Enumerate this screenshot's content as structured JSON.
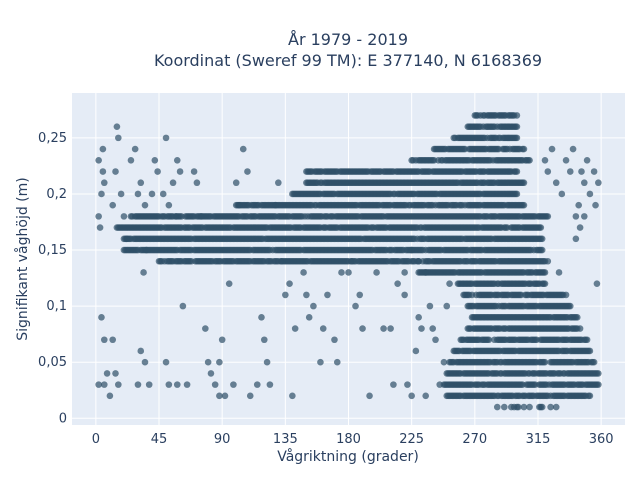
{
  "chart_data": {
    "type": "scatter",
    "title": [
      "År 1979 - 2019",
      "Koordinat (Sweref 99 TM): E 377140, N 6168369"
    ],
    "xlabel": "Vågriktning (grader)",
    "ylabel": "Signifikant våghöjd (m)",
    "xlim": [
      -17,
      377
    ],
    "ylim": [
      -0.006,
      0.29
    ],
    "x_ticks": [
      0,
      45,
      90,
      135,
      180,
      225,
      270,
      315,
      360
    ],
    "x_tick_labels": [
      "0",
      "45",
      "90",
      "135",
      "180",
      "225",
      "270",
      "315",
      "360"
    ],
    "y_ticks": [
      0,
      0.05,
      0.1,
      0.15,
      0.2,
      0.25
    ],
    "y_tick_labels": [
      "0",
      "0,05",
      "0,1",
      "0,15",
      "0,2",
      "0,25"
    ],
    "grid": true,
    "colors": {
      "plot_bg": "#e5ecf6",
      "grid": "#ffffff",
      "marker": "#2f5068",
      "text": "#2a3f5f"
    },
    "marker_opacity": 0.7,
    "bands": [
      {
        "y": 0.01,
        "x_from": 285,
        "x_to": 330,
        "density": 0.35
      },
      {
        "y": 0.02,
        "x_from": 250,
        "x_to": 352,
        "density": 0.85
      },
      {
        "y": 0.03,
        "x_from": 248,
        "x_to": 358,
        "density": 0.9
      },
      {
        "y": 0.04,
        "x_from": 250,
        "x_to": 358,
        "density": 0.9
      },
      {
        "y": 0.05,
        "x_from": 252,
        "x_to": 355,
        "density": 0.9
      },
      {
        "y": 0.06,
        "x_from": 255,
        "x_to": 352,
        "density": 0.9
      },
      {
        "y": 0.07,
        "x_from": 260,
        "x_to": 350,
        "density": 0.9
      },
      {
        "y": 0.08,
        "x_from": 265,
        "x_to": 345,
        "density": 0.9
      },
      {
        "y": 0.09,
        "x_from": 268,
        "x_to": 343,
        "density": 0.9
      },
      {
        "y": 0.1,
        "x_from": 265,
        "x_to": 338,
        "density": 0.9
      },
      {
        "y": 0.11,
        "x_from": 262,
        "x_to": 335,
        "density": 0.9
      },
      {
        "y": 0.12,
        "x_from": 258,
        "x_to": 320,
        "density": 0.9
      },
      {
        "y": 0.13,
        "x_from": 230,
        "x_to": 320,
        "density": 0.95
      },
      {
        "y": 0.14,
        "x_from": 45,
        "x_to": 322,
        "density": 0.9
      },
      {
        "y": 0.15,
        "x_from": 20,
        "x_to": 318,
        "density": 0.95
      },
      {
        "y": 0.16,
        "x_from": 20,
        "x_to": 318,
        "density": 0.95
      },
      {
        "y": 0.17,
        "x_from": 15,
        "x_to": 318,
        "density": 0.95
      },
      {
        "y": 0.18,
        "x_from": 25,
        "x_to": 322,
        "density": 0.95
      },
      {
        "y": 0.19,
        "x_from": 100,
        "x_to": 305,
        "density": 0.95
      },
      {
        "y": 0.2,
        "x_from": 140,
        "x_to": 300,
        "density": 0.95
      },
      {
        "y": 0.21,
        "x_from": 150,
        "x_to": 305,
        "density": 0.95
      },
      {
        "y": 0.22,
        "x_from": 150,
        "x_to": 300,
        "density": 0.9
      },
      {
        "y": 0.23,
        "x_from": 225,
        "x_to": 310,
        "density": 0.9
      },
      {
        "y": 0.24,
        "x_from": 240,
        "x_to": 305,
        "density": 0.9
      },
      {
        "y": 0.25,
        "x_from": 255,
        "x_to": 300,
        "density": 0.9
      },
      {
        "y": 0.26,
        "x_from": 265,
        "x_to": 300,
        "density": 0.9
      },
      {
        "y": 0.27,
        "x_from": 270,
        "x_to": 300,
        "density": 0.9
      }
    ],
    "scatter_points": [
      [
        2,
        0.18
      ],
      [
        3,
        0.17
      ],
      [
        4,
        0.2
      ],
      [
        5,
        0.22
      ],
      [
        6,
        0.21
      ],
      [
        2,
        0.23
      ],
      [
        5,
        0.24
      ],
      [
        4,
        0.09
      ],
      [
        6,
        0.07
      ],
      [
        8,
        0.04
      ],
      [
        10,
        0.02
      ],
      [
        2,
        0.03
      ],
      [
        6,
        0.03
      ],
      [
        12,
        0.19
      ],
      [
        14,
        0.22
      ],
      [
        15,
        0.26
      ],
      [
        16,
        0.25
      ],
      [
        18,
        0.2
      ],
      [
        20,
        0.18
      ],
      [
        22,
        0.16
      ],
      [
        12,
        0.07
      ],
      [
        14,
        0.04
      ],
      [
        16,
        0.03
      ],
      [
        25,
        0.23
      ],
      [
        28,
        0.24
      ],
      [
        30,
        0.2
      ],
      [
        32,
        0.21
      ],
      [
        35,
        0.19
      ],
      [
        36,
        0.15
      ],
      [
        34,
        0.13
      ],
      [
        30,
        0.03
      ],
      [
        32,
        0.06
      ],
      [
        35,
        0.05
      ],
      [
        38,
        0.03
      ],
      [
        40,
        0.2
      ],
      [
        42,
        0.23
      ],
      [
        44,
        0.22
      ],
      [
        48,
        0.2
      ],
      [
        50,
        0.25
      ],
      [
        52,
        0.19
      ],
      [
        55,
        0.21
      ],
      [
        57,
        0.18
      ],
      [
        58,
        0.23
      ],
      [
        60,
        0.22
      ],
      [
        50,
        0.05
      ],
      [
        52,
        0.03
      ],
      [
        58,
        0.03
      ],
      [
        62,
        0.1
      ],
      [
        65,
        0.03
      ],
      [
        70,
        0.22
      ],
      [
        72,
        0.21
      ],
      [
        75,
        0.18
      ],
      [
        78,
        0.08
      ],
      [
        80,
        0.05
      ],
      [
        82,
        0.04
      ],
      [
        85,
        0.03
      ],
      [
        88,
        0.05
      ],
      [
        90,
        0.07
      ],
      [
        88,
        0.02
      ],
      [
        92,
        0.02
      ],
      [
        95,
        0.12
      ],
      [
        98,
        0.03
      ],
      [
        100,
        0.21
      ],
      [
        102,
        0.19
      ],
      [
        105,
        0.24
      ],
      [
        108,
        0.22
      ],
      [
        110,
        0.02
      ],
      [
        115,
        0.03
      ],
      [
        118,
        0.09
      ],
      [
        120,
        0.07
      ],
      [
        122,
        0.05
      ],
      [
        124,
        0.03
      ],
      [
        128,
        0.19
      ],
      [
        130,
        0.21
      ],
      [
        132,
        0.14
      ],
      [
        135,
        0.11
      ],
      [
        138,
        0.12
      ],
      [
        140,
        0.02
      ],
      [
        142,
        0.08
      ],
      [
        145,
        0.14
      ],
      [
        148,
        0.13
      ],
      [
        150,
        0.11
      ],
      [
        152,
        0.09
      ],
      [
        155,
        0.1
      ],
      [
        160,
        0.05
      ],
      [
        162,
        0.08
      ],
      [
        165,
        0.11
      ],
      [
        170,
        0.07
      ],
      [
        172,
        0.05
      ],
      [
        175,
        0.13
      ],
      [
        180,
        0.13
      ],
      [
        182,
        0.14
      ],
      [
        185,
        0.1
      ],
      [
        188,
        0.11
      ],
      [
        190,
        0.08
      ],
      [
        195,
        0.02
      ],
      [
        200,
        0.13
      ],
      [
        205,
        0.08
      ],
      [
        210,
        0.08
      ],
      [
        212,
        0.03
      ],
      [
        215,
        0.12
      ],
      [
        220,
        0.11
      ],
      [
        222,
        0.03
      ],
      [
        225,
        0.02
      ],
      [
        228,
        0.06
      ],
      [
        230,
        0.09
      ],
      [
        232,
        0.08
      ],
      [
        235,
        0.02
      ],
      [
        238,
        0.1
      ],
      [
        240,
        0.08
      ],
      [
        242,
        0.07
      ],
      [
        245,
        0.03
      ],
      [
        248,
        0.05
      ],
      [
        250,
        0.1
      ],
      [
        252,
        0.12
      ],
      [
        220,
        0.13
      ],
      [
        225,
        0.15
      ],
      [
        230,
        0.14
      ],
      [
        235,
        0.13
      ],
      [
        320,
        0.23
      ],
      [
        322,
        0.22
      ],
      [
        325,
        0.24
      ],
      [
        328,
        0.21
      ],
      [
        330,
        0.13
      ],
      [
        332,
        0.2
      ],
      [
        335,
        0.23
      ],
      [
        338,
        0.22
      ],
      [
        340,
        0.24
      ],
      [
        342,
        0.18
      ],
      [
        345,
        0.17
      ],
      [
        348,
        0.21
      ],
      [
        350,
        0.23
      ],
      [
        352,
        0.2
      ],
      [
        355,
        0.22
      ],
      [
        356,
        0.19
      ],
      [
        358,
        0.21
      ],
      [
        357,
        0.12
      ],
      [
        342,
        0.16
      ],
      [
        344,
        0.19
      ],
      [
        346,
        0.22
      ],
      [
        348,
        0.18
      ]
    ]
  }
}
